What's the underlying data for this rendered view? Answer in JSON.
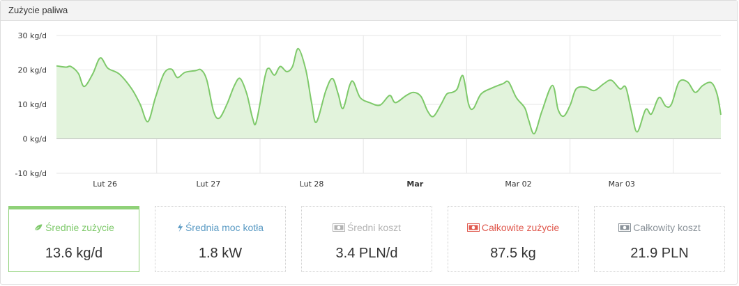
{
  "panel": {
    "title": "Zużycie paliwa"
  },
  "chart_data": {
    "type": "area",
    "ylim": [
      -10,
      30
    ],
    "y_ticks": [
      "30 kg/d",
      "20 kg/d",
      "10 kg/d",
      "0 kg/d",
      "-10 kg/d"
    ],
    "y_tick_values": [
      30,
      20,
      10,
      0,
      -10
    ],
    "x_labels": [
      {
        "text": "Lut 26",
        "bold": false
      },
      {
        "text": "Lut 27",
        "bold": false
      },
      {
        "text": "Lut 28",
        "bold": false
      },
      {
        "text": "Mar",
        "bold": true
      },
      {
        "text": "Mar 02",
        "bold": false
      },
      {
        "text": "Mar 03",
        "bold": false
      }
    ],
    "x_range_days": [
      0,
      6.43
    ],
    "series": [
      {
        "values": [
          [
            0.0,
            21.2
          ],
          [
            0.1,
            20.8
          ],
          [
            0.15,
            21.0
          ],
          [
            0.23,
            19.0
          ],
          [
            0.29,
            15.2
          ],
          [
            0.38,
            18.8
          ],
          [
            0.46,
            23.5
          ],
          [
            0.54,
            20.5
          ],
          [
            0.66,
            18.8
          ],
          [
            0.79,
            14.5
          ],
          [
            0.88,
            10.0
          ],
          [
            0.96,
            5.0
          ],
          [
            1.04,
            12.0
          ],
          [
            1.13,
            19.0
          ],
          [
            1.21,
            20.2
          ],
          [
            1.27,
            17.8
          ],
          [
            1.35,
            19.3
          ],
          [
            1.46,
            19.8
          ],
          [
            1.52,
            20.0
          ],
          [
            1.58,
            17.0
          ],
          [
            1.65,
            8.0
          ],
          [
            1.71,
            6.0
          ],
          [
            1.79,
            10.0
          ],
          [
            1.87,
            15.5
          ],
          [
            1.93,
            17.5
          ],
          [
            2.0,
            13.0
          ],
          [
            2.06,
            6.0
          ],
          [
            2.1,
            5.0
          ],
          [
            2.19,
            18.0
          ],
          [
            2.23,
            20.5
          ],
          [
            2.29,
            18.5
          ],
          [
            2.35,
            21.0
          ],
          [
            2.42,
            19.5
          ],
          [
            2.48,
            21.0
          ],
          [
            2.54,
            26.2
          ],
          [
            2.62,
            20.0
          ],
          [
            2.68,
            10.5
          ],
          [
            2.73,
            4.8
          ],
          [
            2.83,
            14.0
          ],
          [
            2.9,
            17.5
          ],
          [
            2.96,
            13.0
          ],
          [
            3.01,
            8.8
          ],
          [
            3.08,
            15.5
          ],
          [
            3.12,
            16.5
          ],
          [
            3.19,
            12.0
          ],
          [
            3.29,
            10.5
          ],
          [
            3.4,
            9.8
          ],
          [
            3.5,
            12.6
          ],
          [
            3.56,
            10.5
          ],
          [
            3.67,
            12.5
          ],
          [
            3.75,
            13.5
          ],
          [
            3.83,
            12.3
          ],
          [
            3.9,
            8.0
          ],
          [
            3.96,
            6.5
          ],
          [
            4.04,
            10.0
          ],
          [
            4.1,
            13.0
          ],
          [
            4.16,
            13.5
          ],
          [
            4.21,
            14.5
          ],
          [
            4.27,
            18.3
          ],
          [
            4.33,
            10.0
          ],
          [
            4.38,
            8.8
          ],
          [
            4.46,
            13.0
          ],
          [
            4.58,
            14.8
          ],
          [
            4.69,
            16.0
          ],
          [
            4.75,
            16.5
          ],
          [
            4.83,
            12.0
          ],
          [
            4.92,
            9.0
          ],
          [
            4.96,
            5.5
          ],
          [
            5.02,
            1.5
          ],
          [
            5.1,
            8.0
          ],
          [
            5.21,
            15.5
          ],
          [
            5.27,
            8.5
          ],
          [
            5.33,
            6.6
          ],
          [
            5.4,
            10.0
          ],
          [
            5.46,
            14.5
          ],
          [
            5.56,
            15.0
          ],
          [
            5.65,
            14.0
          ],
          [
            5.75,
            16.0
          ],
          [
            5.83,
            17.0
          ],
          [
            5.92,
            14.5
          ],
          [
            5.98,
            15.0
          ],
          [
            6.04,
            8.0
          ],
          [
            6.1,
            2.0
          ],
          [
            6.19,
            8.5
          ],
          [
            6.25,
            7.2
          ],
          [
            6.33,
            12.0
          ],
          [
            6.4,
            9.5
          ],
          [
            6.46,
            10.0
          ],
          [
            6.54,
            16.5
          ],
          [
            6.63,
            16.5
          ],
          [
            6.71,
            13.5
          ],
          [
            6.79,
            15.5
          ],
          [
            6.88,
            16.3
          ],
          [
            6.94,
            13.0
          ],
          [
            6.98,
            7.0
          ]
        ]
      }
    ],
    "colors": {
      "line": "#7ec96a",
      "fill": "#e2f3dc",
      "grid": "#e6e6e6",
      "zero": "#bfbfbf"
    }
  },
  "stats": [
    {
      "label": "Średnie zużycie",
      "value": "13.6 kg/d",
      "icon": "leaf-icon",
      "color": "#7ec96a",
      "active": true
    },
    {
      "label": "Średnia moc kotła",
      "value": "1.8 kW",
      "icon": "lightning-icon",
      "color": "#5b9bc4",
      "active": false
    },
    {
      "label": "Średni koszt",
      "value": "3.4 PLN/d",
      "icon": "money-icon",
      "color": "#b3b3b3",
      "active": false
    },
    {
      "label": "Całkowite zużycie",
      "value": "87.5 kg",
      "icon": "money-icon",
      "color": "#e05a4f",
      "active": false
    },
    {
      "label": "Całkowity koszt",
      "value": "21.9 PLN",
      "icon": "money-icon",
      "color": "#8a9299",
      "active": false
    }
  ]
}
